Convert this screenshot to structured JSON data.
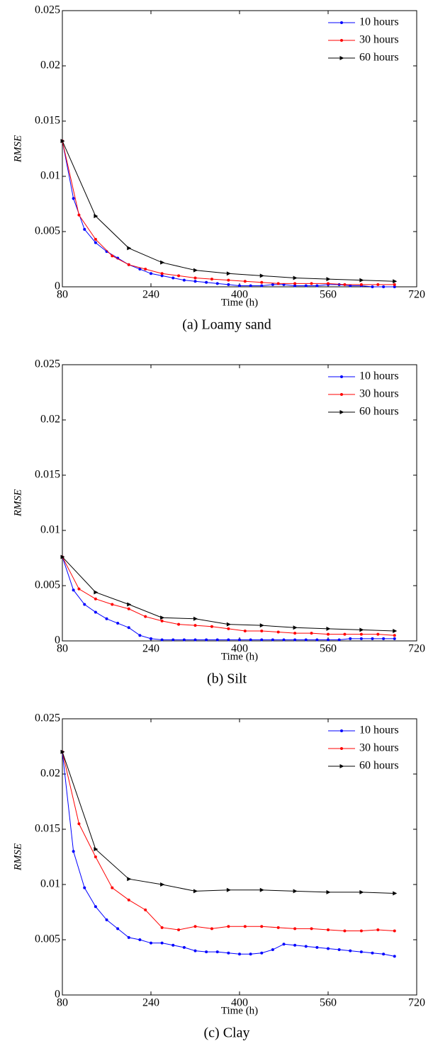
{
  "chart_data": [
    {
      "type": "line",
      "caption": "(a) Loamy sand",
      "xlabel": "Time (h)",
      "ylabel": "RMSE",
      "xlim": [
        80,
        720
      ],
      "xticks": [
        80,
        240,
        400,
        560,
        720
      ],
      "ylim": [
        0,
        0.025
      ],
      "yticks": [
        0,
        0.005,
        0.01,
        0.015,
        0.02,
        0.025
      ],
      "legend": "upper right",
      "series": [
        {
          "name": "10 hours",
          "color": "#0000ff",
          "marker": "dot",
          "x": [
            80,
            100,
            120,
            140,
            160,
            180,
            200,
            220,
            240,
            260,
            280,
            300,
            320,
            340,
            360,
            380,
            400,
            420,
            440,
            460,
            480,
            500,
            520,
            540,
            560,
            580,
            600,
            620,
            640,
            660,
            680
          ],
          "values": [
            0.0132,
            0.008,
            0.0052,
            0.004,
            0.0032,
            0.0026,
            0.002,
            0.0016,
            0.0012,
            0.001,
            0.0008,
            0.0006,
            0.0005,
            0.0004,
            0.0003,
            0.0002,
            0.0001,
            0.0001,
            0.0001,
            0.0002,
            0.0002,
            0.0001,
            0.0001,
            0.0001,
            0.0002,
            0.0002,
            0.0001,
            0.0001,
            0,
            0,
            0
          ]
        },
        {
          "name": "30 hours",
          "color": "#ff0000",
          "marker": "dot",
          "x": [
            80,
            110,
            140,
            170,
            200,
            230,
            260,
            290,
            320,
            350,
            380,
            410,
            440,
            470,
            500,
            530,
            560,
            590,
            620,
            650,
            680
          ],
          "values": [
            0.0132,
            0.0065,
            0.0043,
            0.0028,
            0.002,
            0.0016,
            0.0012,
            0.001,
            0.0008,
            0.0007,
            0.0006,
            0.0005,
            0.0004,
            0.0003,
            0.0003,
            0.0003,
            0.0003,
            0.0002,
            0.0002,
            0.0002,
            0.0002
          ]
        },
        {
          "name": "60 hours",
          "color": "#000000",
          "marker": "triangle",
          "x": [
            80,
            140,
            200,
            260,
            320,
            380,
            440,
            500,
            560,
            620,
            680
          ],
          "values": [
            0.0132,
            0.0064,
            0.0035,
            0.0022,
            0.0015,
            0.0012,
            0.001,
            0.0008,
            0.0007,
            0.0006,
            0.0005
          ]
        }
      ]
    },
    {
      "type": "line",
      "caption": "(b) Silt",
      "xlabel": "Time (h)",
      "ylabel": "RMSE",
      "xlim": [
        80,
        720
      ],
      "xticks": [
        80,
        240,
        400,
        560,
        720
      ],
      "ylim": [
        0,
        0.025
      ],
      "yticks": [
        0,
        0.005,
        0.01,
        0.015,
        0.02,
        0.025
      ],
      "legend": "upper right",
      "series": [
        {
          "name": "10 hours",
          "color": "#0000ff",
          "marker": "dot",
          "x": [
            80,
            100,
            120,
            140,
            160,
            180,
            200,
            220,
            240,
            260,
            280,
            300,
            320,
            340,
            360,
            380,
            400,
            420,
            440,
            460,
            480,
            500,
            520,
            540,
            560,
            580,
            600,
            620,
            640,
            660,
            680
          ],
          "values": [
            0.0076,
            0.0046,
            0.0033,
            0.0026,
            0.002,
            0.0016,
            0.0012,
            0.0005,
            0.0002,
            0.0001,
            0.0001,
            0.0001,
            0.0001,
            0.0001,
            0.0001,
            0.0001,
            0.0001,
            0.0001,
            0.0001,
            0.0001,
            0.0001,
            0.0001,
            0.0001,
            0.0001,
            0.0001,
            0.0001,
            0.0002,
            0.0002,
            0.0002,
            0.0002,
            0.0002
          ]
        },
        {
          "name": "30 hours",
          "color": "#ff0000",
          "marker": "dot",
          "x": [
            80,
            110,
            140,
            170,
            200,
            230,
            260,
            290,
            320,
            350,
            380,
            410,
            440,
            470,
            500,
            530,
            560,
            590,
            620,
            650,
            680
          ],
          "values": [
            0.0076,
            0.0047,
            0.0038,
            0.0033,
            0.0029,
            0.0022,
            0.0018,
            0.0015,
            0.0014,
            0.0013,
            0.0011,
            0.0009,
            0.0009,
            0.0008,
            0.0007,
            0.0007,
            0.0006,
            0.0006,
            0.0006,
            0.0006,
            0.0005
          ]
        },
        {
          "name": "60 hours",
          "color": "#000000",
          "marker": "triangle",
          "x": [
            80,
            140,
            200,
            260,
            320,
            380,
            440,
            500,
            560,
            620,
            680
          ],
          "values": [
            0.0076,
            0.0044,
            0.0033,
            0.0021,
            0.002,
            0.0015,
            0.0014,
            0.0012,
            0.0011,
            0.001,
            0.0009
          ]
        }
      ]
    },
    {
      "type": "line",
      "caption": "(c) Clay",
      "xlabel": "Time (h)",
      "ylabel": "RMSE",
      "xlim": [
        80,
        720
      ],
      "xticks": [
        80,
        240,
        400,
        560,
        720
      ],
      "ylim": [
        0,
        0.025
      ],
      "yticks": [
        0,
        0.005,
        0.01,
        0.015,
        0.02,
        0.025
      ],
      "legend": "upper right",
      "series": [
        {
          "name": "10 hours",
          "color": "#0000ff",
          "marker": "dot",
          "x": [
            80,
            100,
            120,
            140,
            160,
            180,
            200,
            220,
            240,
            260,
            280,
            300,
            320,
            340,
            360,
            380,
            400,
            420,
            440,
            460,
            480,
            500,
            520,
            540,
            560,
            580,
            600,
            620,
            640,
            660,
            680
          ],
          "values": [
            0.022,
            0.013,
            0.0097,
            0.008,
            0.0068,
            0.006,
            0.0052,
            0.005,
            0.0047,
            0.0047,
            0.0045,
            0.0043,
            0.004,
            0.0039,
            0.0039,
            0.0038,
            0.0037,
            0.0037,
            0.0038,
            0.0041,
            0.0046,
            0.0045,
            0.0044,
            0.0043,
            0.0042,
            0.0041,
            0.004,
            0.0039,
            0.0038,
            0.0037,
            0.0035
          ]
        },
        {
          "name": "30 hours",
          "color": "#ff0000",
          "marker": "dot",
          "x": [
            80,
            110,
            140,
            170,
            200,
            230,
            260,
            290,
            320,
            350,
            380,
            410,
            440,
            470,
            500,
            530,
            560,
            590,
            620,
            650,
            680
          ],
          "values": [
            0.022,
            0.0155,
            0.0125,
            0.0097,
            0.0086,
            0.0077,
            0.0061,
            0.0059,
            0.0062,
            0.006,
            0.0062,
            0.0062,
            0.0062,
            0.0061,
            0.006,
            0.006,
            0.0059,
            0.0058,
            0.0058,
            0.0059,
            0.0058
          ]
        },
        {
          "name": "60 hours",
          "color": "#000000",
          "marker": "triangle",
          "x": [
            80,
            140,
            200,
            260,
            320,
            380,
            440,
            500,
            560,
            620,
            680
          ],
          "values": [
            0.022,
            0.0132,
            0.0105,
            0.01,
            0.0094,
            0.0095,
            0.0095,
            0.0094,
            0.0093,
            0.0093,
            0.0092
          ]
        }
      ]
    }
  ]
}
